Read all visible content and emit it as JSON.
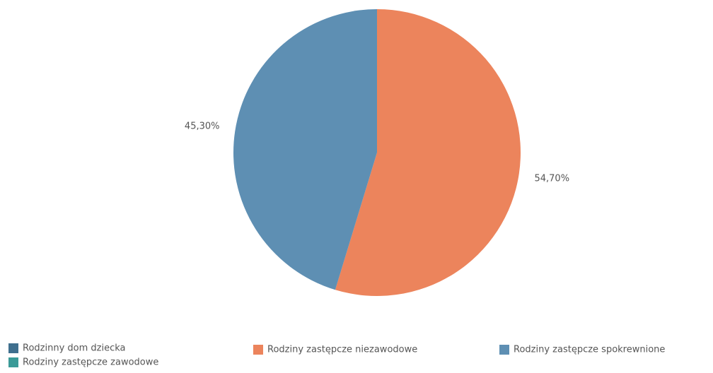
{
  "chart_data": {
    "type": "pie",
    "categories": [
      "Rodzinny dom dziecka",
      "Rodziny zastępcze zawodowe",
      "Rodziny zastępcze niezawodowe",
      "Rodziny zastępcze spokrewnione"
    ],
    "values": [
      0,
      0,
      54.7,
      45.3
    ],
    "value_labels": [
      null,
      null,
      "54,70%",
      "45,30%"
    ],
    "colors": [
      "#3f6f8e",
      "#3a9a97",
      "#ec845c",
      "#5e8fb3"
    ]
  }
}
